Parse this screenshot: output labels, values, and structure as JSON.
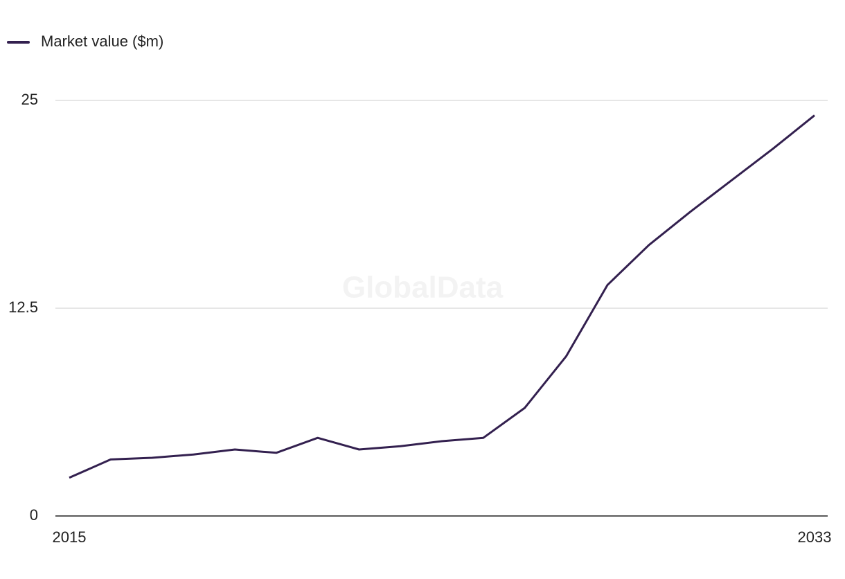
{
  "chart_data": {
    "type": "line",
    "watermark": "GlobalData",
    "x": [
      2015,
      2016,
      2017,
      2018,
      2019,
      2020,
      2021,
      2022,
      2023,
      2024,
      2025,
      2026,
      2027,
      2028,
      2029,
      2030,
      2031,
      2032,
      2033
    ],
    "series": [
      {
        "name": "Market value ($m)",
        "color": "#33204f",
        "values": [
          2.3,
          3.4,
          3.5,
          3.7,
          4.0,
          3.8,
          4.7,
          4.0,
          4.2,
          4.5,
          4.7,
          6.5,
          9.6,
          13.9,
          16.3,
          18.3,
          20.2,
          22.1,
          24.1
        ]
      }
    ],
    "xlim": [
      2015,
      2033
    ],
    "xticks": [
      2015,
      2033
    ],
    "ylim": [
      0,
      25
    ],
    "yticks": [
      0,
      12.5,
      25
    ],
    "grid": true,
    "legend": "top-left"
  }
}
